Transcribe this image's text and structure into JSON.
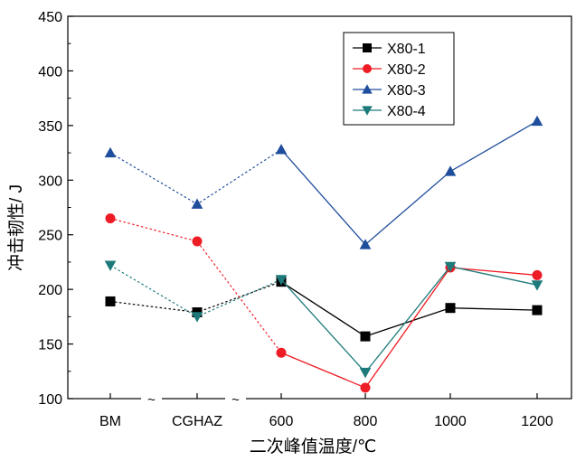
{
  "chart_data": {
    "type": "line",
    "title": "",
    "xlabel": "二次峰值温度/℃",
    "ylabel": "冲击韧性/ J",
    "categories": [
      "BM",
      "CGHAZ",
      "600",
      "800",
      "1000",
      "1200"
    ],
    "ylim": [
      100,
      450
    ],
    "yticks": [
      100,
      150,
      200,
      250,
      300,
      350,
      400,
      450
    ],
    "grid": false,
    "legend_position": "top-right",
    "axis_break_mark": "~",
    "series": [
      {
        "name": "X80-1",
        "values": [
          189,
          179,
          207,
          157,
          183,
          181
        ],
        "color": "#000000",
        "marker": "square"
      },
      {
        "name": "X80-2",
        "values": [
          265,
          244,
          142,
          110,
          220,
          213
        ],
        "color": "#ee1c25",
        "marker": "circle"
      },
      {
        "name": "X80-3",
        "values": [
          325,
          278,
          328,
          241,
          308,
          354
        ],
        "color": "#1f4e9c",
        "marker": "triangle-up"
      },
      {
        "name": "X80-4",
        "values": [
          222,
          175,
          209,
          124,
          221,
          204
        ],
        "color": "#1e7a7a",
        "marker": "triangle-down"
      }
    ]
  }
}
